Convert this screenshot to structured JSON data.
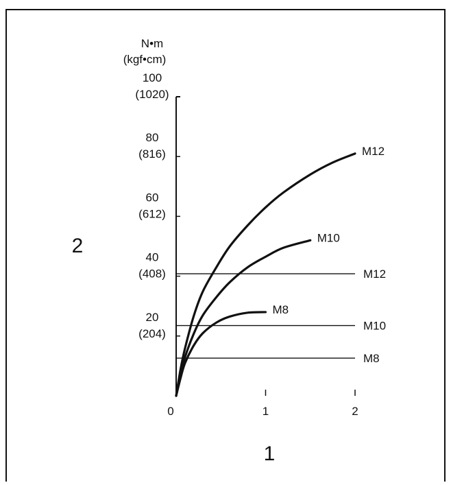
{
  "chart_data": {
    "type": "line",
    "axis_unit_line1": "N•m",
    "axis_unit_line2": "(kgf•cm)",
    "xlabel": "1",
    "ylabel": "2",
    "xlim": [
      0,
      2
    ],
    "ylim": [
      0,
      100
    ],
    "x_ticks": [
      {
        "value": 0,
        "label": "0"
      },
      {
        "value": 1,
        "label": "1"
      },
      {
        "value": 2,
        "label": "2"
      }
    ],
    "y_ticks": [
      {
        "value": 20,
        "label": "20",
        "sublabel": "(204)"
      },
      {
        "value": 40,
        "label": "40",
        "sublabel": "(408)"
      },
      {
        "value": 60,
        "label": "60",
        "sublabel": "(612)"
      },
      {
        "value": 80,
        "label": "80",
        "sublabel": "(816)"
      },
      {
        "value": 100,
        "label": "100",
        "sublabel": "(1020)"
      }
    ],
    "curves": [
      {
        "name": "M8",
        "points": [
          [
            0,
            0
          ],
          [
            0.05,
            6
          ],
          [
            0.1,
            11
          ],
          [
            0.2,
            17
          ],
          [
            0.3,
            21
          ],
          [
            0.45,
            24.5
          ],
          [
            0.6,
            26.5
          ],
          [
            0.8,
            27.8
          ],
          [
            1.0,
            28
          ]
        ]
      },
      {
        "name": "M10",
        "points": [
          [
            0,
            0
          ],
          [
            0.05,
            7
          ],
          [
            0.1,
            13
          ],
          [
            0.2,
            21
          ],
          [
            0.3,
            27
          ],
          [
            0.45,
            33
          ],
          [
            0.6,
            38
          ],
          [
            0.8,
            43
          ],
          [
            1.0,
            46.5
          ],
          [
            1.2,
            49.5
          ],
          [
            1.5,
            52
          ]
        ]
      },
      {
        "name": "M12",
        "points": [
          [
            0,
            0
          ],
          [
            0.05,
            9
          ],
          [
            0.1,
            16
          ],
          [
            0.2,
            27
          ],
          [
            0.3,
            35
          ],
          [
            0.45,
            43
          ],
          [
            0.6,
            50
          ],
          [
            0.8,
            57
          ],
          [
            1.0,
            63
          ],
          [
            1.2,
            68
          ],
          [
            1.5,
            74
          ],
          [
            1.75,
            78
          ],
          [
            2.0,
            81
          ]
        ]
      }
    ],
    "limits": [
      {
        "name": "M12",
        "value": 40.8
      },
      {
        "name": "M10",
        "value": 23.5
      },
      {
        "name": "M8",
        "value": 12.6
      }
    ],
    "grid": false
  }
}
